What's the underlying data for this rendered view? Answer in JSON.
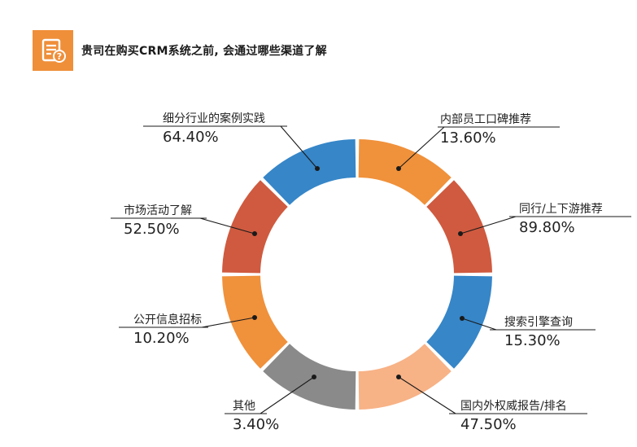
{
  "header": {
    "title": "贵司在购买CRM系统之前, 会通过哪些渠道了解",
    "icon": "document-question-icon"
  },
  "chart_data": {
    "type": "pie",
    "title": "",
    "colors": {
      "orange": "#f0913b",
      "red": "#cf5a3f",
      "blue": "#3686c8",
      "gray": "#8a8a8a",
      "peach": "#f7b286"
    },
    "slices": [
      {
        "label": "内部员工口碑推荐",
        "value_label": "13.60%",
        "value": 13.6,
        "color": "#f0913b"
      },
      {
        "label": "同行/上下游推荐",
        "value_label": "89.80%",
        "value": 89.8,
        "color": "#cf5a3f"
      },
      {
        "label": "搜索引擎查询",
        "value_label": "15.30%",
        "value": 15.3,
        "color": "#3686c8"
      },
      {
        "label": "国内外权威报告/排名",
        "value_label": "47.50%",
        "value": 47.5,
        "color": "#f7b286"
      },
      {
        "label": "其他",
        "value_label": "3.40%",
        "value": 3.4,
        "color": "#8a8a8a"
      },
      {
        "label": "公开信息招标",
        "value_label": "10.20%",
        "value": 10.2,
        "color": "#f0913b"
      },
      {
        "label": "市场活动了解",
        "value_label": "52.50%",
        "value": 52.5,
        "color": "#cf5a3f"
      },
      {
        "label": "细分行业的案例实践",
        "value_label": "64.40%",
        "value": 64.4,
        "color": "#3686c8"
      }
    ]
  }
}
